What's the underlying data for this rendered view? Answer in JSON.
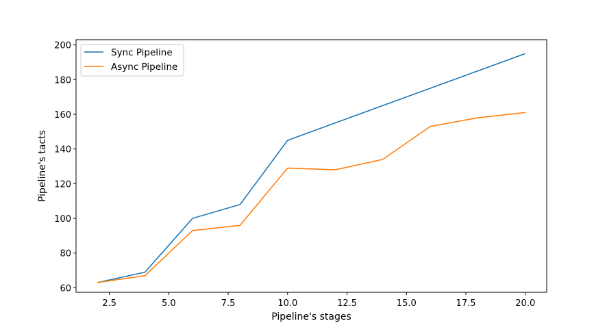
{
  "chart_data": {
    "type": "line",
    "title": "",
    "xlabel": "Pipeline's stages",
    "ylabel": "Pipeline's tacts",
    "xlim": [
      1.1,
      20.9
    ],
    "ylim": [
      57.4,
      203.0
    ],
    "x_ticks": [
      2.5,
      5.0,
      7.5,
      10.0,
      12.5,
      15.0,
      17.5,
      20.0
    ],
    "x_tick_labels": [
      "2.5",
      "5.0",
      "7.5",
      "10.0",
      "12.5",
      "15.0",
      "17.5",
      "20.0"
    ],
    "y_ticks": [
      60,
      80,
      100,
      120,
      140,
      160,
      180,
      200
    ],
    "y_tick_labels": [
      "60",
      "80",
      "100",
      "120",
      "140",
      "160",
      "180",
      "200"
    ],
    "grid": false,
    "legend_position": "top-left",
    "x": [
      2,
      4,
      6,
      8,
      10,
      12,
      14,
      16,
      18,
      20
    ],
    "series": [
      {
        "name": "Sync Pipeline",
        "color": "#1f77b4",
        "values": [
          63,
          69,
          100,
          108,
          145,
          155,
          165,
          175,
          185,
          195
        ]
      },
      {
        "name": "Async Pipeline",
        "color": "#ff7f0e",
        "values": [
          63,
          67,
          93,
          96,
          129,
          128,
          134,
          153,
          158,
          161
        ]
      }
    ]
  }
}
